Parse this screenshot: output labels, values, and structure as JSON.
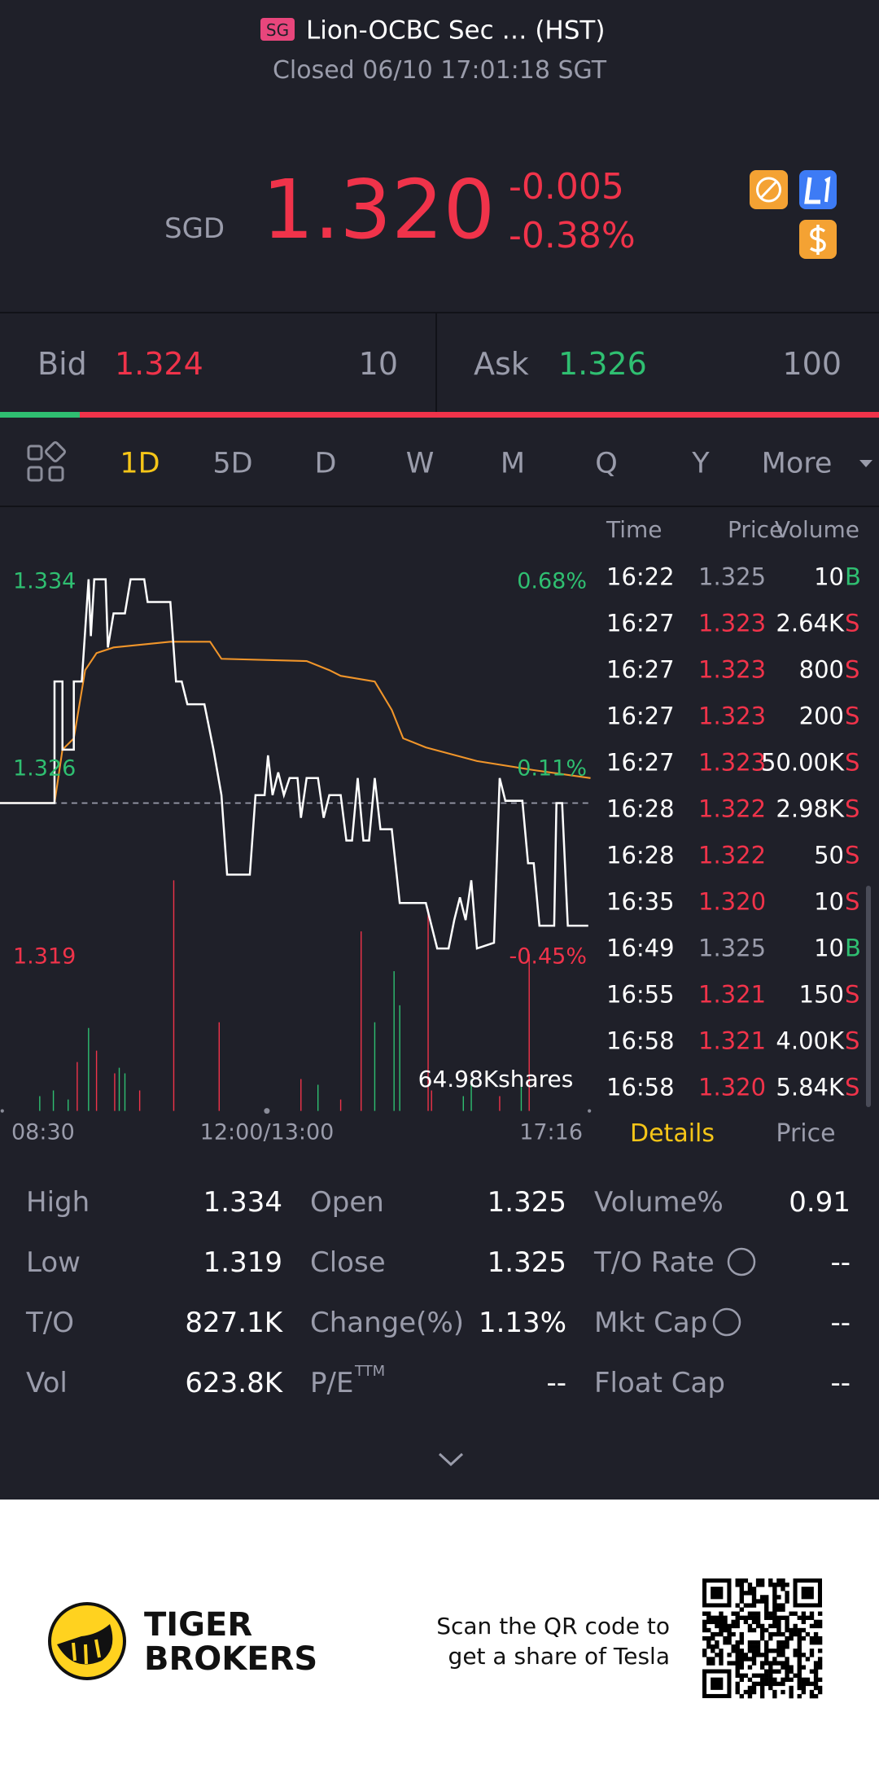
{
  "header": {
    "badge": "SG",
    "title": "Lion-OCBC Sec … (HST)",
    "status": "Closed 06/10 17:01:18 SGT"
  },
  "quote": {
    "currency": "SGD",
    "price": "1.320",
    "change": "-0.005",
    "change_pct": "-0.38%"
  },
  "bid_ask": {
    "bid_label": "Bid",
    "bid_price": "1.324",
    "bid_size": "10",
    "ask_label": "Ask",
    "ask_price": "1.326",
    "ask_size": "100"
  },
  "tabs": [
    "1D",
    "5D",
    "D",
    "W",
    "M",
    "Q",
    "Y",
    "More"
  ],
  "chart": {
    "price_labels": [
      "1.334",
      "1.326",
      "1.319"
    ],
    "pct_labels": [
      "0.68%",
      "0.11%",
      "-0.45%"
    ],
    "volume_label": "64.98Kshares",
    "time_labels": [
      "08:30",
      "12:00/13:00",
      "17:16"
    ]
  },
  "trades": {
    "headers": [
      "Time",
      "Price",
      "Volume"
    ],
    "rows": [
      [
        "16:22",
        "1.325",
        "10",
        "B"
      ],
      [
        "16:27",
        "1.323",
        "2.64K",
        "S"
      ],
      [
        "16:27",
        "1.323",
        "800",
        "S"
      ],
      [
        "16:27",
        "1.323",
        "200",
        "S"
      ],
      [
        "16:27",
        "1.323",
        "50.00K",
        "S"
      ],
      [
        "16:28",
        "1.322",
        "2.98K",
        "S"
      ],
      [
        "16:28",
        "1.322",
        "50",
        "S"
      ],
      [
        "16:35",
        "1.320",
        "10",
        "S"
      ],
      [
        "16:49",
        "1.325",
        "10",
        "B"
      ],
      [
        "16:55",
        "1.321",
        "150",
        "S"
      ],
      [
        "16:58",
        "1.321",
        "4.00K",
        "S"
      ],
      [
        "16:58",
        "1.320",
        "5.84K",
        "S"
      ]
    ]
  },
  "detail_tabs": [
    "Details",
    "Price"
  ],
  "stats": [
    [
      [
        "High",
        "1.334"
      ],
      [
        "Open",
        "1.325"
      ],
      [
        "Volume%",
        "0.91"
      ]
    ],
    [
      [
        "Low",
        "1.319"
      ],
      [
        "Close",
        "1.325"
      ],
      [
        "T/O Rate",
        "--"
      ]
    ],
    [
      [
        "T/O",
        "827.1K"
      ],
      [
        "Change(%)",
        "1.13%"
      ],
      [
        "Mkt Cap",
        "--"
      ]
    ],
    [
      [
        "Vol",
        "623.8K"
      ],
      [
        "P/E",
        "--"
      ],
      [
        "Float Cap",
        "--"
      ]
    ]
  ],
  "pe_superscript": "TTM",
  "footer": {
    "brand": [
      "TIGER",
      "BROKERS"
    ],
    "promo": [
      "Scan the QR code to",
      "get a share of Tesla"
    ]
  }
}
